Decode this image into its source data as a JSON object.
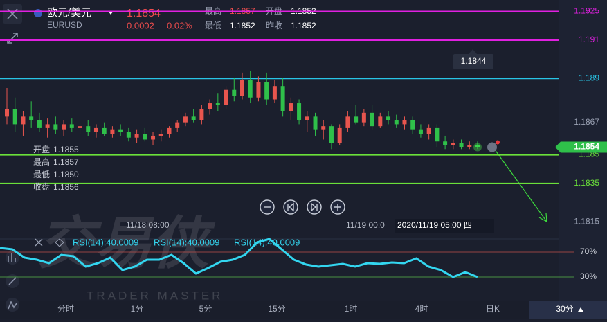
{
  "header": {
    "symbol": "欧元/美元",
    "code": "EURUSD",
    "price": "1.1854",
    "change": "0.0002",
    "change_pct": "0.02%",
    "stats": [
      {
        "label": "最高",
        "value": "1.1857"
      },
      {
        "label": "开盘",
        "value": "1.1852"
      },
      {
        "label": "最低",
        "value": "1.1852"
      },
      {
        "label": "昨收",
        "value": "1.1852"
      }
    ]
  },
  "ohlc_info": [
    {
      "label": "开盘",
      "value": "1.1855"
    },
    {
      "label": "最高",
      "value": "1.1857"
    },
    {
      "label": "最低",
      "value": "1.1850"
    },
    {
      "label": "收盘",
      "value": "1.1856"
    }
  ],
  "time_labels": [
    "11/18 08:00",
    "11/19 00:0",
    "2020/11/19 05:00 四"
  ],
  "watermark": {
    "title": "交易侠",
    "subtitle": "TRADER MASTER"
  },
  "timeframes": [
    "分时",
    "1分",
    "5分",
    "15分",
    "1时",
    "4时",
    "日K",
    "30分"
  ],
  "chart_data": [
    {
      "type": "candlestick",
      "up_color": "#e8554e",
      "down_color": "#2fc04a",
      "ylim": [
        1.1806,
        1.1931
      ],
      "yticks": [
        1.1925,
        1.191,
        1.189,
        1.1867,
        1.185,
        1.1835,
        1.1815
      ],
      "levels": [
        {
          "value": 1.1925,
          "color": "#e020e0"
        },
        {
          "value": 1.191,
          "color": "#e020e0"
        },
        {
          "value": 1.189,
          "color": "#29c5e6"
        },
        {
          "value": 1.185,
          "color": "#6be03a"
        },
        {
          "value": 1.1835,
          "color": "#6be03a"
        }
      ],
      "current_price": 1.1854,
      "cursor_label": "1.1844",
      "open": [
        1.187,
        1.1874,
        1.1866,
        1.187,
        1.1868,
        1.1864,
        1.1866,
        1.1863,
        1.1866,
        1.1864,
        1.1865,
        1.1862,
        1.1864,
        1.1861,
        1.1863,
        1.1862,
        1.1859,
        1.1861,
        1.1858,
        1.186,
        1.1861,
        1.1864,
        1.1867,
        1.187,
        1.1868,
        1.1874,
        1.1877,
        1.1876,
        1.1884,
        1.1881,
        1.1889,
        1.188,
        1.1888,
        1.1879,
        1.1886,
        1.1873,
        1.1877,
        1.1868,
        1.187,
        1.1863,
        1.1865,
        1.1856,
        1.1864,
        1.187,
        1.1867,
        1.1872,
        1.1865,
        1.187,
        1.1868,
        1.1866,
        1.1868,
        1.1863,
        1.1861,
        1.1864,
        1.1857,
        1.1855,
        1.1856,
        1.1854,
        1.1855
      ],
      "high": [
        1.1885,
        1.188,
        1.1873,
        1.1878,
        1.1872,
        1.1869,
        1.187,
        1.1868,
        1.1869,
        1.1867,
        1.1868,
        1.1866,
        1.1867,
        1.1865,
        1.1866,
        1.1864,
        1.1863,
        1.1864,
        1.1862,
        1.1863,
        1.1865,
        1.1868,
        1.1872,
        1.1874,
        1.1876,
        1.1879,
        1.1882,
        1.1886,
        1.189,
        1.1893,
        1.1894,
        1.1891,
        1.1893,
        1.1889,
        1.189,
        1.188,
        1.1879,
        1.1873,
        1.1872,
        1.1868,
        1.1866,
        1.1866,
        1.1873,
        1.1876,
        1.1874,
        1.1876,
        1.1872,
        1.1873,
        1.1871,
        1.187,
        1.187,
        1.1866,
        1.1866,
        1.1866,
        1.186,
        1.1858,
        1.1858,
        1.1857,
        1.1857
      ],
      "low": [
        1.1866,
        1.1862,
        1.186,
        1.1864,
        1.1862,
        1.1859,
        1.1861,
        1.186,
        1.1862,
        1.1861,
        1.186,
        1.1859,
        1.186,
        1.1859,
        1.186,
        1.1857,
        1.1856,
        1.1857,
        1.1855,
        1.1857,
        1.1859,
        1.1862,
        1.1865,
        1.1867,
        1.1866,
        1.1871,
        1.1873,
        1.1874,
        1.1878,
        1.1879,
        1.1877,
        1.1878,
        1.1876,
        1.1877,
        1.187,
        1.1868,
        1.1866,
        1.1862,
        1.186,
        1.1858,
        1.1853,
        1.1855,
        1.1862,
        1.1866,
        1.1865,
        1.1863,
        1.1864,
        1.1866,
        1.1864,
        1.1863,
        1.1861,
        1.1859,
        1.1858,
        1.1854,
        1.1853,
        1.1853,
        1.1853,
        1.1853,
        1.1853
      ],
      "close": [
        1.1874,
        1.1866,
        1.187,
        1.1868,
        1.1864,
        1.1866,
        1.1863,
        1.1866,
        1.1864,
        1.1865,
        1.1862,
        1.1864,
        1.1861,
        1.1863,
        1.1862,
        1.1859,
        1.1861,
        1.1858,
        1.186,
        1.1861,
        1.1864,
        1.1867,
        1.187,
        1.1868,
        1.1874,
        1.1877,
        1.1876,
        1.1884,
        1.1881,
        1.1889,
        1.188,
        1.1888,
        1.1879,
        1.1886,
        1.1873,
        1.1877,
        1.1868,
        1.187,
        1.1863,
        1.1865,
        1.1856,
        1.1864,
        1.187,
        1.1867,
        1.1872,
        1.1865,
        1.187,
        1.1868,
        1.1866,
        1.1868,
        1.1863,
        1.1861,
        1.1864,
        1.1857,
        1.1855,
        1.1856,
        1.1854,
        1.1855,
        1.1854
      ]
    },
    {
      "type": "line",
      "indicator_labels": [
        "RSI(14):40.0009",
        "RSI(14):40.0009",
        "RSI(14):40.0009"
      ],
      "color": "#33d6f0",
      "ylim": [
        -3.3,
        91.1
      ],
      "yticks": [
        {
          "value": 70,
          "label": "70%"
        },
        {
          "value": 30,
          "label": "30%"
        }
      ],
      "tick_colors": [
        "#c0504a",
        "#58b84a"
      ],
      "values": [
        76.7,
        74.4,
        61.1,
        57.8,
        52.2,
        65.6,
        63.3,
        46.7,
        52.2,
        61.1,
        41.1,
        46.7,
        57.8,
        57.8,
        65.6,
        52.2,
        35.6,
        44.4,
        54.4,
        57.8,
        65.6,
        85.6,
        91.1,
        74.4,
        57.8,
        50,
        46.7,
        48.9,
        51.1,
        46.7,
        52.2,
        51.1,
        53.3,
        52.2,
        60,
        46.7,
        41.1,
        30,
        37.8,
        30
      ]
    }
  ]
}
